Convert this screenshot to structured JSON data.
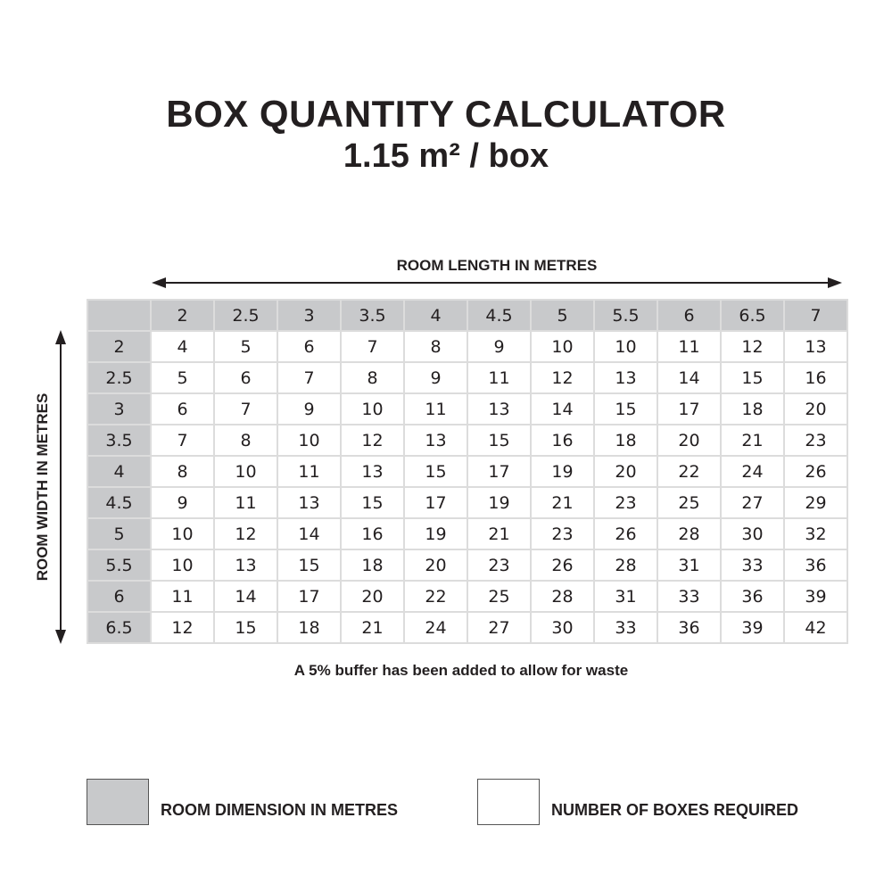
{
  "chart_data": {
    "type": "table",
    "title": "BOX QUANTITY CALCULATOR",
    "subtitle": "1.15 m² / box",
    "xlabel": "ROOM LENGTH IN METRES",
    "ylabel": "ROOM WIDTH IN METRES",
    "columns": [
      "2",
      "2.5",
      "3",
      "3.5",
      "4",
      "4.5",
      "5",
      "5.5",
      "6",
      "6.5",
      "7"
    ],
    "rows": [
      {
        "width": "2",
        "values": [
          "4",
          "5",
          "6",
          "7",
          "8",
          "9",
          "10",
          "10",
          "11",
          "12",
          "13"
        ]
      },
      {
        "width": "2.5",
        "values": [
          "5",
          "6",
          "7",
          "8",
          "9",
          "11",
          "12",
          "13",
          "14",
          "15",
          "16"
        ]
      },
      {
        "width": "3",
        "values": [
          "6",
          "7",
          "9",
          "10",
          "11",
          "13",
          "14",
          "15",
          "17",
          "18",
          "20"
        ]
      },
      {
        "width": "3.5",
        "values": [
          "7",
          "8",
          "10",
          "12",
          "13",
          "15",
          "16",
          "18",
          "20",
          "21",
          "23"
        ]
      },
      {
        "width": "4",
        "values": [
          "8",
          "10",
          "11",
          "13",
          "15",
          "17",
          "19",
          "20",
          "22",
          "24",
          "26"
        ]
      },
      {
        "width": "4.5",
        "values": [
          "9",
          "11",
          "13",
          "15",
          "17",
          "19",
          "21",
          "23",
          "25",
          "27",
          "29"
        ]
      },
      {
        "width": "5",
        "values": [
          "10",
          "12",
          "14",
          "16",
          "19",
          "21",
          "23",
          "26",
          "28",
          "30",
          "32"
        ]
      },
      {
        "width": "5.5",
        "values": [
          "10",
          "13",
          "15",
          "18",
          "20",
          "23",
          "26",
          "28",
          "31",
          "33",
          "36"
        ]
      },
      {
        "width": "6",
        "values": [
          "11",
          "14",
          "17",
          "20",
          "22",
          "25",
          "28",
          "31",
          "33",
          "36",
          "39"
        ]
      },
      {
        "width": "6.5",
        "values": [
          "12",
          "15",
          "18",
          "21",
          "24",
          "27",
          "30",
          "33",
          "36",
          "39",
          "42"
        ]
      }
    ],
    "note": "A 5% buffer has been added to allow for waste",
    "legend": [
      {
        "label": "ROOM DIMENSION IN METRES",
        "color": "#c8c9cb"
      },
      {
        "label": "NUMBER OF BOXES REQUIRED",
        "color": "#ffffff"
      }
    ]
  }
}
